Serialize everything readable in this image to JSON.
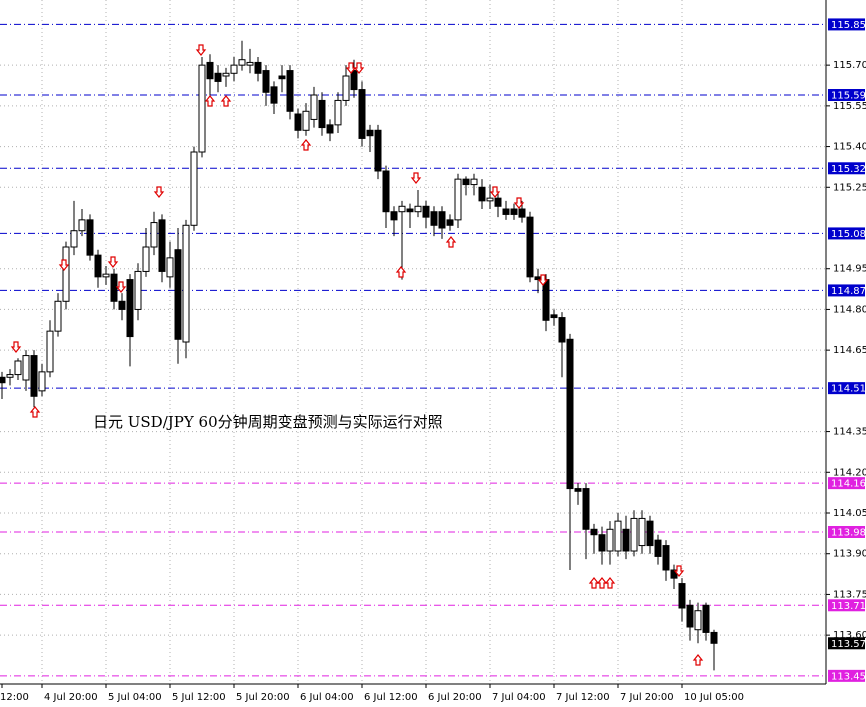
{
  "chart_data": {
    "type": "candlestick",
    "annotation": "日元 USD/JPY  60分钟周期变盘预测与实际运行对照",
    "categories": [
      "12:00",
      null,
      null,
      null,
      null,
      "4 Jul 20:00",
      null,
      null,
      null,
      null,
      null,
      null,
      null,
      "5 Jul 04:00",
      null,
      null,
      null,
      null,
      null,
      null,
      null,
      "5 Jul 12:00",
      null,
      null,
      null,
      null,
      null,
      null,
      null,
      "5 Jul 20:00",
      null,
      null,
      null,
      null,
      null,
      null,
      null,
      "6 Jul 04:00",
      null,
      null,
      null,
      null,
      null,
      null,
      null,
      "6 Jul 12:00",
      null,
      null,
      null,
      null,
      null,
      null,
      null,
      "6 Jul 20:00",
      null,
      null,
      null,
      null,
      null,
      null,
      null,
      "7 Jul 04:00",
      null,
      null,
      null,
      null,
      null,
      null,
      null,
      "7 Jul 12:00",
      null,
      null,
      null,
      null,
      null,
      null,
      null,
      "7 Jul 20:00",
      null,
      null,
      null,
      null,
      null,
      null,
      null,
      "10 Jul 05:00",
      null,
      null,
      null,
      null
    ],
    "open": [
      114.55,
      114.55,
      114.56,
      114.54,
      114.63,
      114.5,
      114.57,
      114.72,
      114.83,
      115.03,
      115.09,
      115.13,
      115.0,
      114.92,
      114.93,
      114.83,
      114.91,
      114.8,
      114.94,
      115.03,
      115.13,
      114.92,
      115.02,
      114.68,
      115.11,
      115.38,
      115.71,
      115.67,
      115.66,
      115.67,
      115.7,
      115.7,
      115.71,
      115.68,
      115.62,
      115.66,
      115.68,
      115.52,
      115.46,
      115.5,
      115.57,
      115.48,
      115.48,
      115.57,
      115.68,
      115.61,
      115.46,
      115.46,
      115.31,
      115.16,
      115.16,
      115.17,
      115.16,
      115.18,
      115.16,
      115.16,
      115.13,
      115.13,
      115.28,
      115.26,
      115.25,
      115.2,
      115.21,
      115.17,
      115.17,
      115.17,
      115.14,
      114.92,
      114.91,
      114.78,
      114.77,
      114.69,
      114.14,
      114.14,
      113.99,
      113.97,
      113.91,
      113.91,
      113.99,
      113.91,
      113.93,
      114.02,
      113.95,
      113.93,
      113.84,
      113.79,
      113.71,
      113.62,
      113.71,
      113.61
    ],
    "high": [
      114.57,
      114.58,
      114.62,
      114.65,
      114.65,
      114.6,
      114.76,
      114.86,
      115.05,
      115.2,
      115.17,
      115.15,
      115.02,
      114.96,
      114.95,
      114.86,
      114.93,
      114.97,
      115.1,
      115.16,
      115.15,
      115.05,
      115.1,
      115.13,
      115.4,
      115.73,
      115.74,
      115.7,
      115.69,
      115.73,
      115.79,
      115.76,
      115.73,
      115.7,
      115.64,
      115.7,
      115.7,
      115.54,
      115.56,
      115.62,
      115.6,
      115.5,
      115.6,
      115.7,
      115.72,
      115.64,
      115.48,
      115.48,
      115.33,
      115.18,
      115.2,
      115.19,
      115.24,
      115.2,
      115.18,
      115.18,
      115.15,
      115.3,
      115.29,
      115.3,
      115.28,
      115.26,
      115.23,
      115.2,
      115.19,
      115.2,
      115.16,
      114.95,
      114.93,
      114.8,
      114.79,
      114.71,
      114.16,
      114.16,
      114.01,
      114.0,
      114.02,
      114.05,
      114.04,
      114.06,
      114.06,
      114.04,
      113.97,
      113.95,
      113.86,
      113.81,
      113.73,
      113.72,
      113.72,
      113.62
    ],
    "low": [
      114.47,
      114.52,
      114.54,
      114.5,
      114.44,
      114.48,
      114.55,
      114.7,
      114.8,
      115.0,
      115.07,
      114.98,
      114.88,
      114.89,
      114.8,
      114.76,
      114.59,
      114.76,
      114.92,
      115.0,
      114.9,
      114.88,
      114.6,
      114.62,
      115.09,
      115.36,
      115.58,
      115.6,
      115.62,
      115.64,
      115.68,
      115.67,
      115.64,
      115.55,
      115.52,
      115.6,
      115.5,
      115.43,
      115.44,
      115.47,
      115.44,
      115.42,
      115.45,
      115.55,
      115.58,
      115.4,
      115.38,
      115.28,
      115.1,
      115.07,
      114.91,
      115.1,
      115.14,
      115.1,
      115.07,
      115.06,
      115.09,
      115.1,
      115.22,
      115.22,
      115.17,
      115.17,
      115.14,
      115.13,
      115.13,
      115.12,
      114.9,
      114.86,
      114.72,
      114.74,
      114.55,
      113.84,
      114.08,
      113.88,
      113.9,
      113.86,
      113.86,
      113.89,
      113.88,
      113.89,
      113.9,
      113.9,
      113.86,
      113.8,
      113.77,
      113.65,
      113.58,
      113.57,
      113.58,
      113.47
    ],
    "close": [
      114.53,
      114.56,
      114.61,
      114.63,
      114.48,
      114.57,
      114.72,
      114.83,
      115.03,
      115.09,
      115.13,
      115.0,
      114.92,
      114.93,
      114.83,
      114.8,
      114.7,
      114.94,
      115.03,
      115.12,
      114.94,
      114.99,
      114.69,
      115.11,
      115.38,
      115.7,
      115.65,
      115.64,
      115.67,
      115.7,
      115.72,
      115.71,
      115.67,
      115.6,
      115.56,
      115.65,
      115.53,
      115.46,
      115.53,
      115.59,
      115.47,
      115.45,
      115.57,
      115.66,
      115.61,
      115.43,
      115.44,
      115.31,
      115.16,
      115.13,
      115.18,
      115.16,
      115.18,
      115.14,
      115.11,
      115.1,
      115.11,
      115.28,
      115.26,
      115.28,
      115.2,
      115.21,
      115.18,
      115.15,
      115.15,
      115.14,
      114.92,
      114.91,
      114.76,
      114.77,
      114.68,
      114.14,
      114.13,
      113.99,
      113.97,
      113.91,
      113.99,
      114.02,
      113.91,
      114.03,
      114.03,
      113.93,
      113.89,
      113.84,
      113.81,
      113.7,
      113.63,
      113.69,
      113.61,
      113.57
    ],
    "up_color": "#ffffff",
    "down_color": "#000000",
    "ylim": [
      113.42,
      115.94
    ],
    "yticks": [
      {
        "value": 115.7,
        "label": "115.70"
      },
      115.55,
      {
        "value": 115.4,
        "label": "115.40"
      },
      115.25,
      114.95,
      {
        "value": 114.8,
        "label": "114.80"
      },
      114.65,
      114.35,
      {
        "value": 114.2,
        "label": "114.20"
      },
      114.05,
      {
        "value": 113.9,
        "label": "113.90"
      },
      113.75,
      {
        "value": 113.6,
        "label": "113.60"
      }
    ],
    "grid": true,
    "levels": [
      {
        "value": 115.85,
        "color": "#0000cc"
      },
      {
        "value": 115.59,
        "color": "#0000cc"
      },
      {
        "value": 115.32,
        "color": "#0000cc"
      },
      {
        "value": 115.08,
        "color": "#0000cc"
      },
      {
        "value": 114.87,
        "color": "#0000cc"
      },
      {
        "value": 114.51,
        "color": "#0000cc"
      },
      {
        "value": 114.16,
        "color": "#e020e0"
      },
      {
        "value": 113.98,
        "color": "#e020e0"
      },
      {
        "value": 113.71,
        "color": "#e020e0"
      },
      {
        "value": 113.45,
        "color": "#e020e0"
      }
    ],
    "last_price": 113.57
  }
}
